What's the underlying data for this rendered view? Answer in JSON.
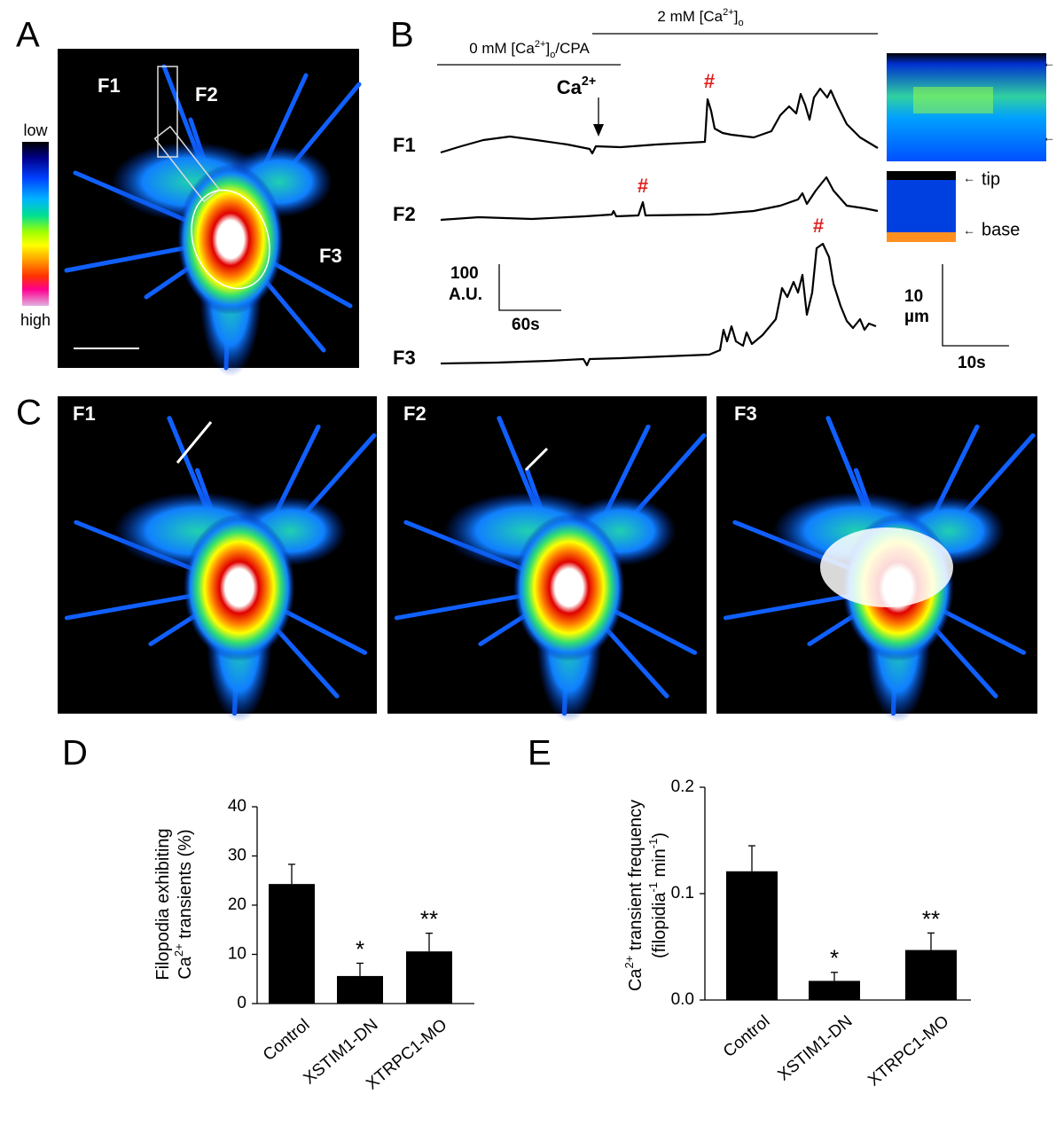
{
  "panel_labels": [
    "A",
    "B",
    "C",
    "D",
    "E"
  ],
  "panel_a": {
    "labels": [
      "F1",
      "F2",
      "F3"
    ],
    "colorbar": [
      "low",
      "high"
    ]
  },
  "panel_b": {
    "top_label": [
      {
        "text": "2 mM [Ca"
      },
      {
        "text": "2+",
        "sup": true
      },
      {
        "text": "]"
      },
      {
        "text": "o",
        "sub": true
      }
    ],
    "cpa_label": [
      {
        "text": "0 mM [Ca"
      },
      {
        "text": "2+",
        "sup": true
      },
      {
        "text": "]"
      },
      {
        "text": "o",
        "sub": true
      },
      {
        "text": "/CPA"
      }
    ],
    "ca_label": [
      {
        "text": "Ca"
      },
      {
        "text": "2+",
        "sup": true
      }
    ],
    "hashes": [
      "#",
      "#",
      "#"
    ],
    "traces": [
      "F1",
      "F2",
      "F3"
    ],
    "scale_y": [
      100,
      "A.U."
    ],
    "scale_x": "60s",
    "kymo": [
      "tip",
      "base"
    ],
    "kymo_scale_y": [
      10,
      "µm"
    ],
    "kymo_scale_x": "10s"
  },
  "panel_c": [
    "F1",
    "F2",
    "F3"
  ],
  "chart_data": [
    {
      "type": "bar",
      "ylabel": [
        [
          {
            "text": "Filopodia exhibiting"
          }
        ],
        [
          {
            "text": "Ca"
          },
          {
            "text": "2+",
            "sup": true
          },
          {
            "text": " transients (%)"
          }
        ]
      ],
      "categories": [
        "Control",
        "XSTIM1-DN",
        "XTRPC1-MO"
      ],
      "values": [
        24.3,
        5.6,
        10.6
      ],
      "errors": [
        4.0,
        2.6,
        3.7
      ],
      "significance": [
        null,
        "*",
        "**"
      ],
      "color": "#000000",
      "ylim": [
        0,
        40
      ],
      "yticks": [
        0,
        10,
        20,
        30,
        40
      ]
    },
    {
      "type": "bar",
      "ylabel": [
        [
          {
            "text": "Ca"
          },
          {
            "text": "2+",
            "sup": true
          },
          {
            "text": " transient frequency"
          }
        ],
        [
          {
            "text": "(filopidia"
          },
          {
            "text": "-1",
            "sup": true
          },
          {
            "text": " min"
          },
          {
            "text": "-1",
            "sup": true
          },
          {
            "text": ")"
          }
        ]
      ],
      "categories": [
        "Control",
        "XSTIM1-DN",
        "XTRPC1-MO"
      ],
      "values": [
        0.121,
        0.018,
        0.047
      ],
      "errors": [
        0.024,
        0.008,
        0.016
      ],
      "significance": [
        null,
        "*",
        "**"
      ],
      "color": "#000000",
      "ylim": [
        0,
        0.2
      ],
      "yticks": [
        {
          "value": 0,
          "label": "0.0"
        },
        0.1,
        0.2
      ]
    }
  ]
}
